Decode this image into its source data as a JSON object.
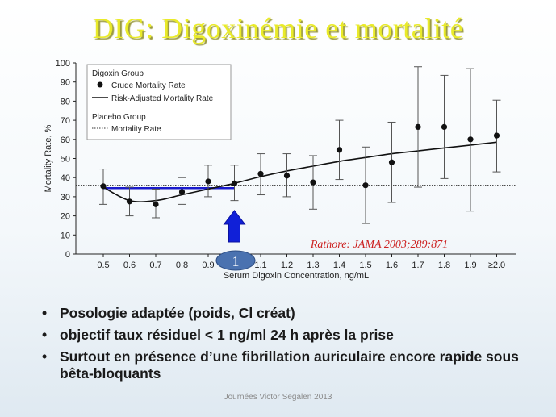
{
  "slide": {
    "title": "DIG: Digoxinémie et mortalité",
    "citation": "Rathore: JAMA 2003;289:871",
    "marker_label": "1",
    "bullets": [
      "Posologie adaptée (poids, Cl créat)",
      "objectif  taux résiduel < 1 ng/ml 24 h après la prise",
      "Surtout en présence d’une fibrillation auriculaire encore rapide sous bêta-bloquants"
    ],
    "footer": "Journées Victor Segalen 2013"
  },
  "chart_data": {
    "type": "scatter",
    "xlabel": "Serum Digoxin Concentration, ng/mL",
    "ylabel": "Mortality Rate, %",
    "ylim": [
      0,
      100
    ],
    "yticks": [
      0,
      10,
      20,
      30,
      40,
      50,
      60,
      70,
      80,
      90,
      100
    ],
    "categories": [
      "0.5",
      "0.6",
      "0.7",
      "0.8",
      "0.9",
      "1.0",
      "1.1",
      "1.2",
      "1.3",
      "1.4",
      "1.5",
      "1.6",
      "1.7",
      "1.8",
      "1.9",
      "≥2.0"
    ],
    "legend": {
      "placement": "top-left",
      "group1": "Digoxin Group",
      "crude": "Crude Mortality Rate",
      "adjusted": "Risk-Adjusted Mortality Rate",
      "group2": "Placebo Group",
      "placebo": "Mortality Rate"
    },
    "series": [
      {
        "name": "Crude Mortality Rate",
        "values": [
          35.5,
          27.5,
          26,
          32.5,
          38,
          37,
          42,
          41,
          37.5,
          54.5,
          36,
          48,
          66.5,
          66.5,
          60,
          62
        ],
        "lower": [
          26,
          20,
          19,
          26,
          30,
          28,
          31,
          30,
          23.5,
          39,
          16,
          27,
          35,
          39.5,
          22.5,
          43
        ],
        "upper": [
          44.5,
          35,
          34,
          40,
          46.5,
          46.5,
          52.5,
          52.5,
          51.5,
          70,
          56,
          69,
          98,
          93.5,
          97,
          80.5
        ]
      },
      {
        "name": "Risk-Adjusted Mortality Rate",
        "values": [
          35,
          28,
          28,
          31,
          34,
          37,
          40.5,
          43.5,
          46,
          48.5,
          50.5,
          52.5,
          54,
          55.5,
          57,
          58.5
        ]
      },
      {
        "name": "Mortality Rate",
        "values": [
          36,
          36,
          36,
          36,
          36,
          36,
          36,
          36,
          36,
          36,
          36,
          36,
          36,
          36,
          36,
          36
        ]
      }
    ],
    "annotations": [
      {
        "type": "horizontal-line",
        "from_x": "0.5",
        "to_x": "1.0",
        "y": 34.5,
        "color": "#1a1acc"
      },
      {
        "type": "arrow-up",
        "x": "1.0",
        "color": "#1020d8"
      }
    ],
    "colors": {
      "title": "#e9ea2a",
      "citation": "#cc2222",
      "marker": "#4a72b0"
    },
    "grid": false
  }
}
